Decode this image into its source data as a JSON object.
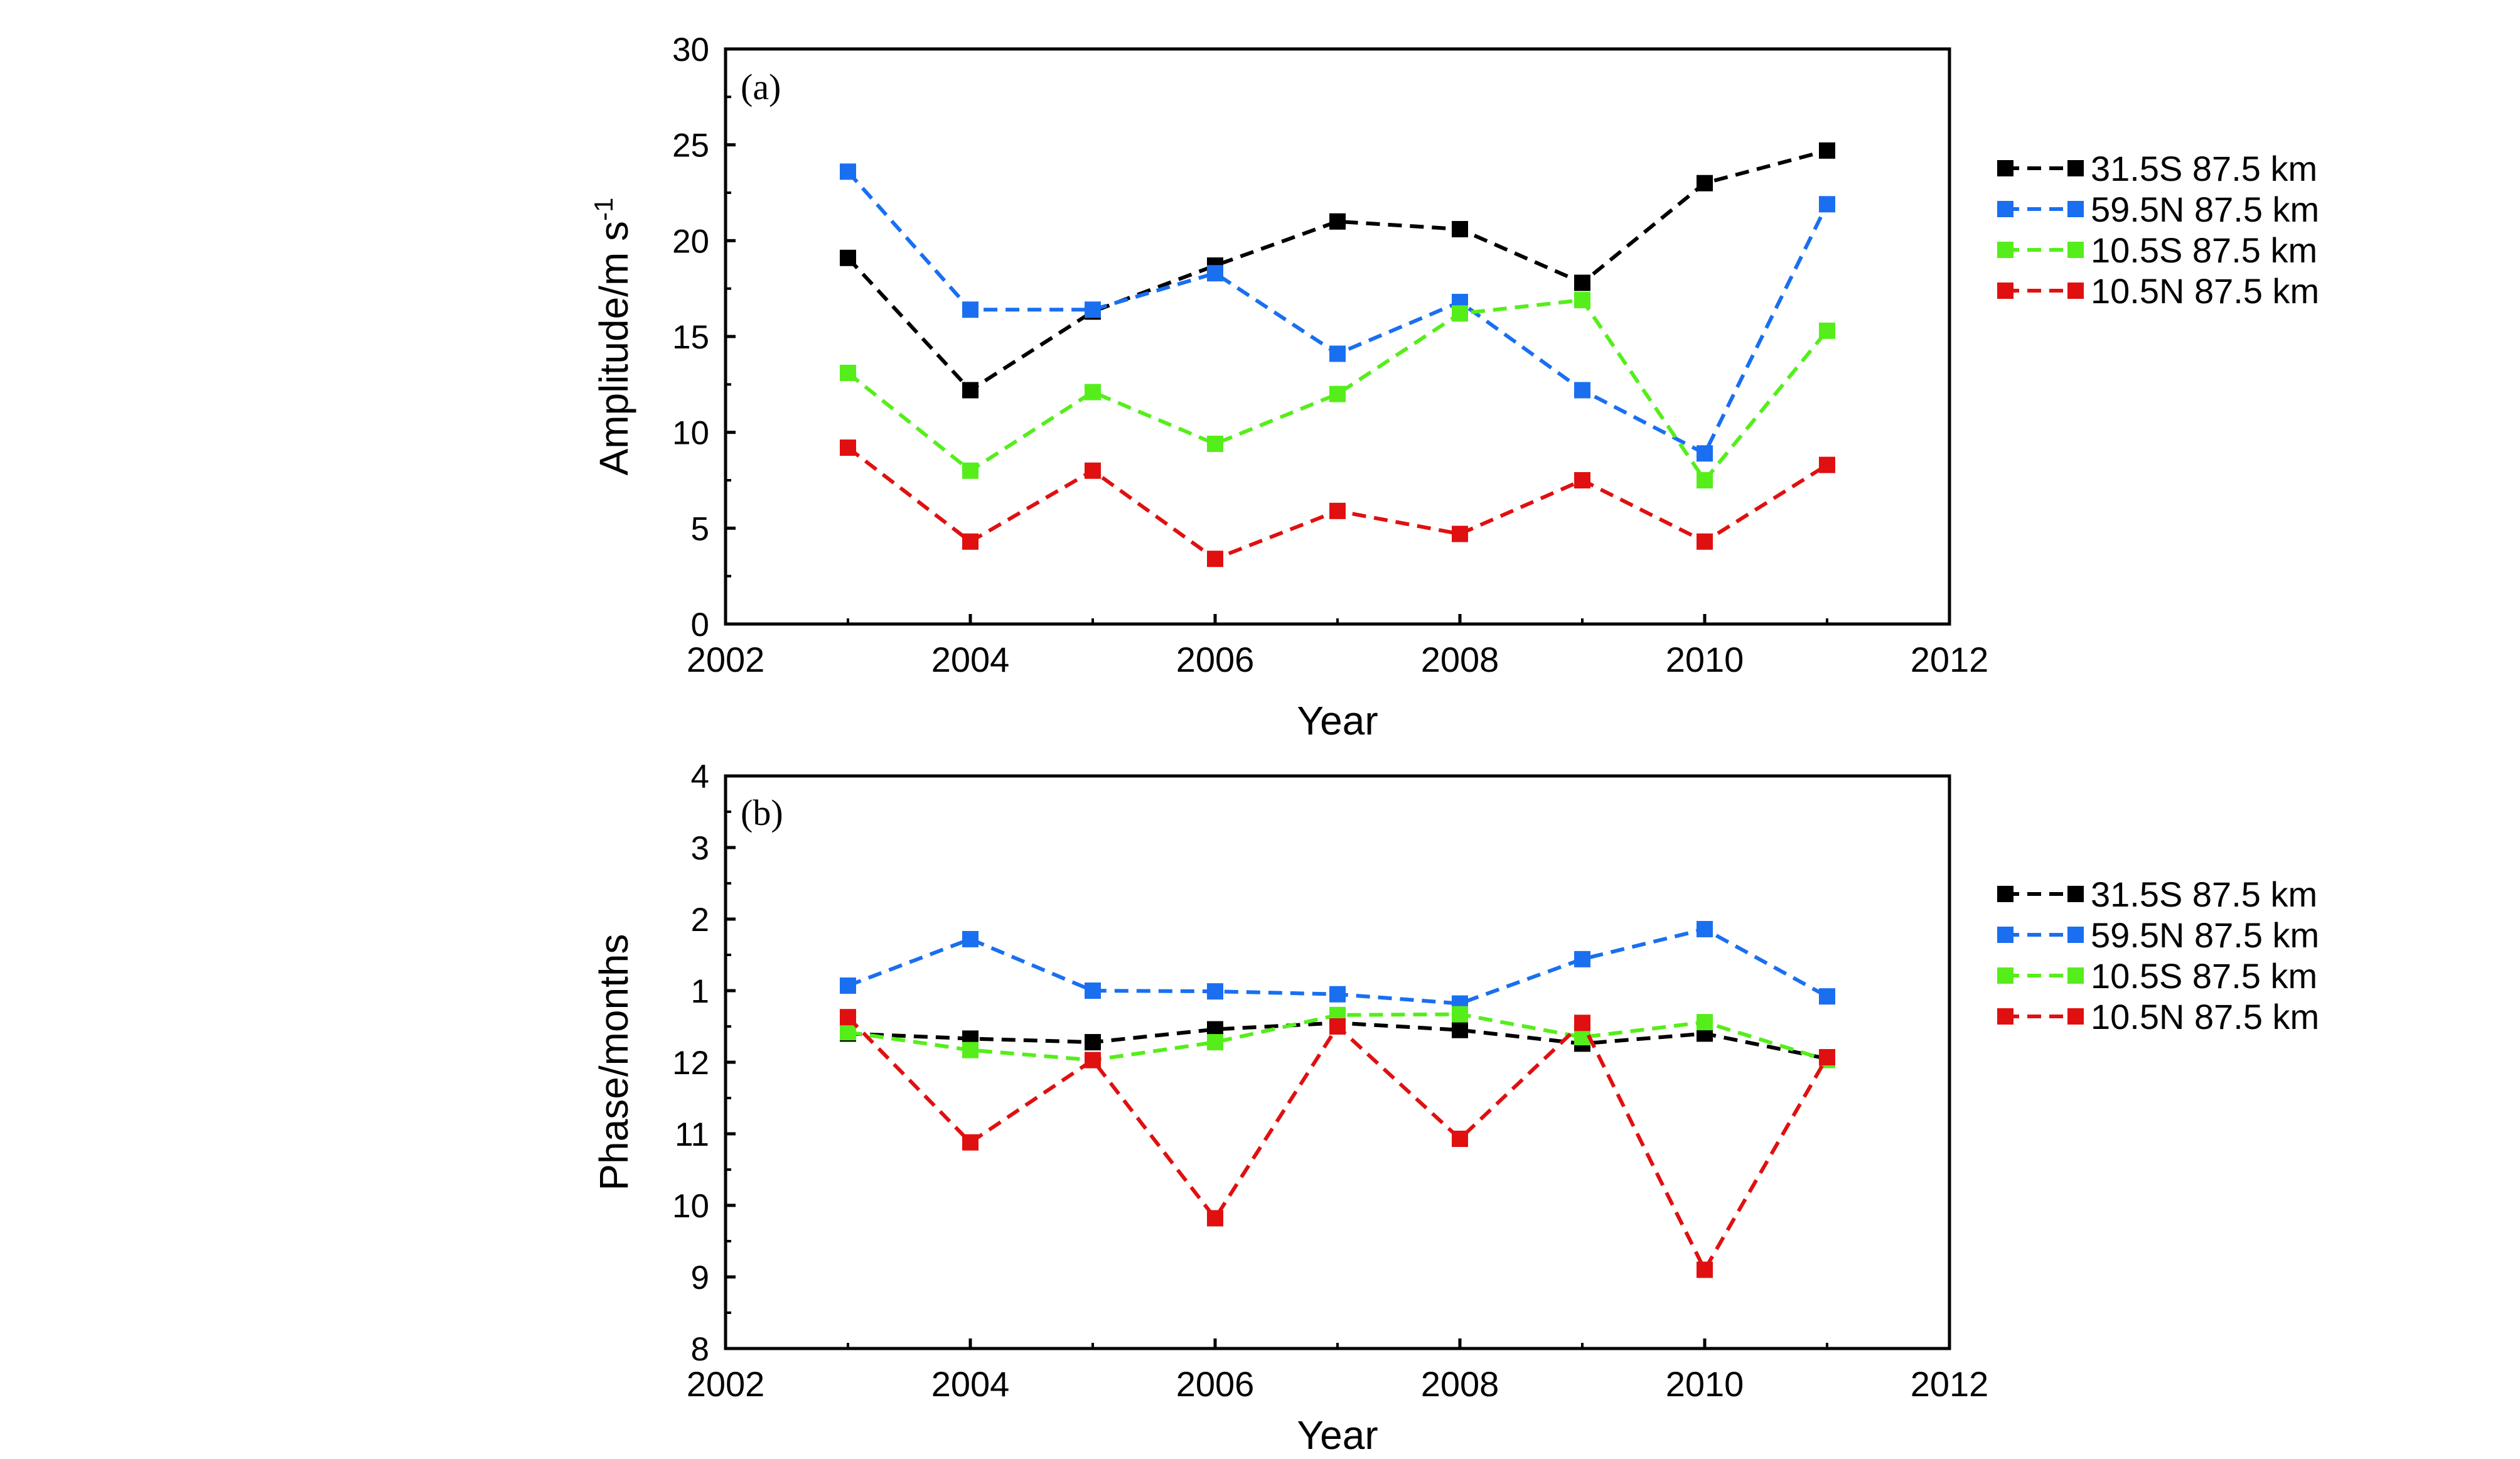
{
  "colors": {
    "black": "#000000",
    "blue": "#1a6ff0",
    "green": "#55ee1a",
    "red": "#e01010"
  },
  "chart_data": [
    {
      "type": "line",
      "panel_label": "(a)",
      "xlabel": "Year",
      "ylabel": "Amplitude/m s",
      "ylabel_superscript": "-1",
      "xlim": [
        2002,
        2012
      ],
      "ylim": [
        0,
        30
      ],
      "x_ticks": [
        "2002",
        "2004",
        "2006",
        "2008",
        "2010",
        "2012"
      ],
      "y_ticks": [
        "0",
        "5",
        "10",
        "15",
        "20",
        "25",
        "30"
      ],
      "legend_position": "right",
      "grid": false,
      "x": [
        2003,
        2004,
        2005,
        2006,
        2007,
        2008,
        2009,
        2010,
        2011
      ],
      "series": [
        {
          "name": "31.5S 87.5 km",
          "color": "#000000",
          "values": [
            19.1,
            12.2,
            16.3,
            18.7,
            21.0,
            20.6,
            17.8,
            23.0,
            24.7
          ]
        },
        {
          "name": "59.5N 87.5 km",
          "color": "#1a6ff0",
          "values": [
            23.6,
            16.4,
            16.4,
            18.3,
            14.1,
            16.8,
            12.2,
            8.9,
            21.9
          ]
        },
        {
          "name": "10.5S 87.5 km",
          "color": "#55ee1a",
          "values": [
            13.1,
            8.0,
            12.1,
            9.4,
            12.0,
            16.2,
            16.9,
            7.5,
            15.3
          ]
        },
        {
          "name": "10.5N 87.5 km",
          "color": "#e01010",
          "values": [
            9.2,
            4.3,
            8.0,
            3.4,
            5.9,
            4.7,
            7.5,
            4.3,
            8.3
          ]
        }
      ]
    },
    {
      "type": "line",
      "panel_label": "(b)",
      "xlabel": "Year",
      "ylabel": "Phase/months",
      "xlim": [
        2002,
        2012
      ],
      "ylim": [
        8,
        16
      ],
      "x_ticks": [
        "2002",
        "2004",
        "2006",
        "2008",
        "2010",
        "2012"
      ],
      "y_ticks": [
        "8",
        "9",
        "10",
        "11",
        "12",
        "1",
        "2",
        "3",
        "4"
      ],
      "legend_position": "right",
      "grid": false,
      "x": [
        2003,
        2004,
        2005,
        2006,
        2007,
        2008,
        2009,
        2010,
        2011
      ],
      "series": [
        {
          "name": "31.5S 87.5 km",
          "color": "#000000",
          "values": [
            12.4,
            12.33,
            12.28,
            12.46,
            12.55,
            12.45,
            12.26,
            12.4,
            12.05
          ]
        },
        {
          "name": "59.5N 87.5 km",
          "color": "#1a6ff0",
          "values": [
            13.07,
            13.72,
            13.0,
            12.99,
            12.95,
            12.82,
            13.44,
            13.86,
            12.92
          ]
        },
        {
          "name": "10.5S 87.5 km",
          "color": "#55ee1a",
          "values": [
            12.42,
            12.17,
            12.03,
            12.28,
            12.66,
            12.67,
            12.35,
            12.56,
            12.03
          ]
        },
        {
          "name": "10.5N 87.5 km",
          "color": "#e01010",
          "values": [
            12.63,
            10.88,
            12.03,
            9.82,
            12.5,
            10.93,
            12.55,
            9.1,
            12.07
          ]
        }
      ]
    }
  ]
}
